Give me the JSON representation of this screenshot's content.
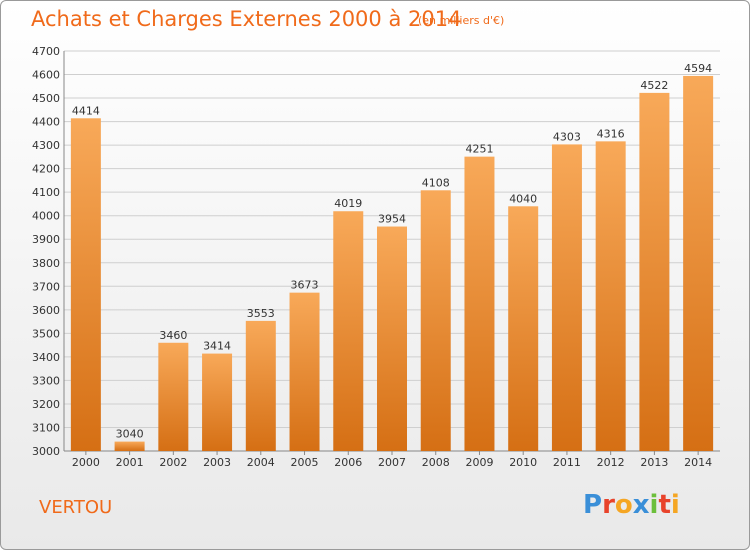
{
  "header": {
    "title": "Achats et Charges Externes 2000 à 2014",
    "subtitle": "(en milliers d'€)"
  },
  "footer": {
    "commune": "VERTOU",
    "logo_letters": [
      "P",
      "r",
      "o",
      "x",
      "i",
      "t",
      "i"
    ],
    "logo_colors": [
      "#3a8fd8",
      "#e8432b",
      "#f5a623",
      "#3a8fd8",
      "#6cbf3b",
      "#e8432b",
      "#f5a623"
    ]
  },
  "colors": {
    "bar_light": "#f8a959",
    "bar_dark": "#d56f14",
    "grid": "#cfcfcf",
    "text": "#f06a1a"
  },
  "chart_data": {
    "type": "bar",
    "title": "Achats et Charges Externes 2000 à 2014",
    "subtitle": "(en milliers d'€)",
    "categories": [
      "2000",
      "2001",
      "2002",
      "2003",
      "2004",
      "2005",
      "2006",
      "2007",
      "2008",
      "2009",
      "2010",
      "2011",
      "2012",
      "2013",
      "2014"
    ],
    "values": [
      4414,
      3040,
      3460,
      3414,
      3553,
      3673,
      4019,
      3954,
      4108,
      4251,
      4040,
      4303,
      4316,
      4522,
      4594
    ],
    "ylim": [
      3000,
      4700
    ],
    "yticks": [
      3000,
      3100,
      3200,
      3300,
      3400,
      3500,
      3600,
      3700,
      3800,
      3900,
      4000,
      4100,
      4200,
      4300,
      4400,
      4500,
      4600,
      4700
    ],
    "grid": true,
    "xlabel": "",
    "ylabel": ""
  }
}
